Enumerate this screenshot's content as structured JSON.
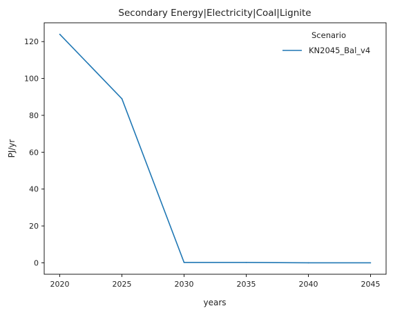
{
  "chart_data": {
    "type": "line",
    "title": "Secondary Energy|Electricity|Coal|Lignite",
    "xlabel": "years",
    "ylabel": "PJ/yr",
    "x": [
      2020,
      2025,
      2030,
      2035,
      2040,
      2045
    ],
    "series": [
      {
        "name": "KN2045_Bal_v4",
        "values": [
          124,
          89,
          0.2,
          0.2,
          0.0,
          0.0
        ],
        "color": "#1f77b4"
      }
    ],
    "xticks": [
      2020,
      2025,
      2030,
      2035,
      2040,
      2045
    ],
    "yticks": [
      0,
      20,
      40,
      60,
      80,
      100,
      120
    ],
    "xlim": [
      2018.75,
      2046.25
    ],
    "ylim": [
      -6.2,
      130.2
    ],
    "grid": false,
    "legend": {
      "title": "Scenario",
      "placement": "top-right"
    }
  }
}
